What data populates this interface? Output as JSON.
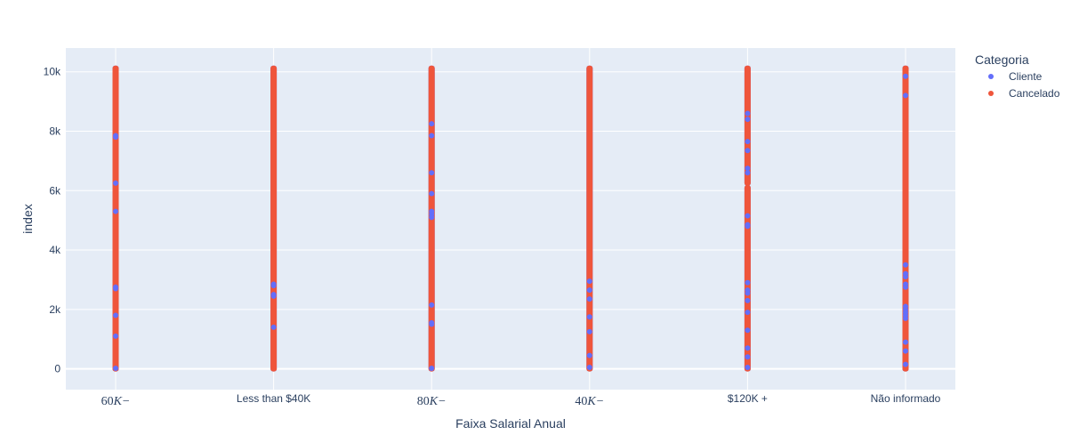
{
  "chart_data": {
    "type": "scatter",
    "xlabel": "Faixa Salarial Anual",
    "ylabel": "index",
    "categories": [
      "60K-",
      "Less than $40K",
      "80K-",
      "40K-",
      "$120K +",
      "Não informado"
    ],
    "category_display": [
      {
        "text": "60",
        "math": "K−"
      },
      {
        "text": "Less than $40K",
        "math": ""
      },
      {
        "text": "80",
        "math": "K−"
      },
      {
        "text": "40",
        "math": "K−"
      },
      {
        "text": "$120K +",
        "math": ""
      },
      {
        "text": "Não informado",
        "math": ""
      }
    ],
    "ylim": [
      -700,
      10800
    ],
    "yticks": [
      0,
      2000,
      4000,
      6000,
      8000,
      10000
    ],
    "ytick_labels": [
      "0",
      "2k",
      "4k",
      "6k",
      "8k",
      "10k"
    ],
    "grid": true,
    "legend_position": "right",
    "legend_title": "Categoria",
    "series": [
      {
        "name": "Cliente",
        "color": "#636efa",
        "segments": [
          [
            [
              0,
              10120
            ]
          ],
          [
            [
              0,
              10120
            ]
          ],
          [
            [
              0,
              10120
            ]
          ],
          [
            [
              0,
              10120
            ]
          ],
          [
            [
              0,
              6100
            ],
            [
              6250,
              10120
            ]
          ],
          [
            [
              0,
              10120
            ]
          ]
        ]
      },
      {
        "name": "Cancelado",
        "color": "#ef553b",
        "segments": [
          [
            [
              0,
              10120
            ]
          ],
          [
            [
              0,
              10120
            ]
          ],
          [
            [
              0,
              10120
            ]
          ],
          [
            [
              0,
              10120
            ]
          ],
          [
            [
              0,
              6100
            ],
            [
              6250,
              10120
            ]
          ],
          [
            [
              0,
              10120
            ]
          ]
        ],
        "cliente_visible_at": [
          [
            7850,
            7800,
            6250,
            5300,
            2750,
            2700,
            1800,
            1100,
            20
          ],
          [
            2850,
            2800,
            2500,
            2450,
            1400
          ],
          [
            8250,
            7850,
            6600,
            5900,
            5300,
            5200,
            5100,
            2150,
            1550,
            1500,
            20
          ],
          [
            2950,
            2650,
            2350,
            1750,
            1250,
            450,
            50
          ],
          [
            8600,
            8400,
            7650,
            7350,
            6750,
            6600,
            5150,
            4850,
            4800,
            2900,
            2650,
            2550,
            2300,
            1900,
            1300,
            700,
            400,
            50
          ],
          [
            9850,
            9200,
            3500,
            3200,
            3100,
            2850,
            2750,
            2100,
            2000,
            1900,
            1800,
            1700,
            900,
            600,
            150
          ]
        ]
      }
    ]
  }
}
